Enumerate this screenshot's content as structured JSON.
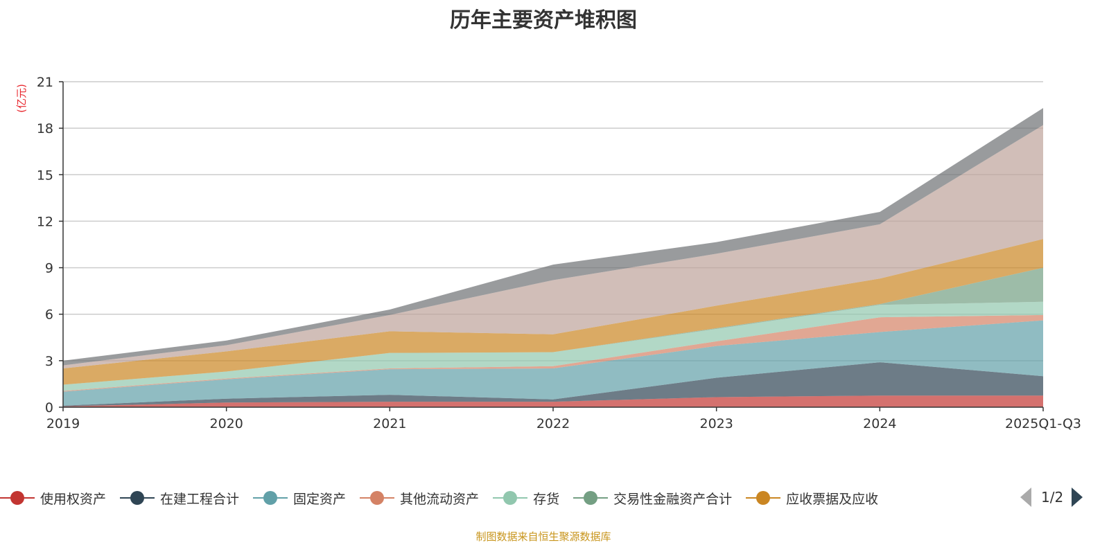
{
  "chart_data": {
    "type": "area",
    "stacked": true,
    "title": "历年主要资产堆积图",
    "ylabel": "(亿元)",
    "xlabel": "",
    "ylim": [
      0,
      21
    ],
    "yticks": [
      0,
      3,
      6,
      9,
      12,
      15,
      18,
      21
    ],
    "categories": [
      "2019",
      "2020",
      "2021",
      "2022",
      "2023",
      "2024",
      "2025Q1-Q3"
    ],
    "grid": true,
    "legend_position": "bottom",
    "legend_page": "1/2",
    "series": [
      {
        "name": "使用权资产",
        "color": "#c23531",
        "values": [
          0.05,
          0.3,
          0.35,
          0.35,
          0.65,
          0.75,
          0.75
        ]
      },
      {
        "name": "在建工程合计",
        "color": "#2f4554",
        "values": [
          0.05,
          0.25,
          0.45,
          0.15,
          1.25,
          2.15,
          1.25
        ]
      },
      {
        "name": "固定资产",
        "color": "#61a0a8",
        "values": [
          0.9,
          1.25,
          1.65,
          2.0,
          2.05,
          1.95,
          3.6
        ]
      },
      {
        "name": "其他流动资产",
        "color": "#d48265",
        "values": [
          0.05,
          0.05,
          0.05,
          0.15,
          0.3,
          0.95,
          0.35
        ]
      },
      {
        "name": "存货",
        "color": "#91c7ae",
        "values": [
          0.4,
          0.45,
          1.0,
          0.9,
          0.8,
          0.8,
          0.85
        ]
      },
      {
        "name": "交易性金融资产合计",
        "color": "#749f83",
        "values": [
          0,
          0,
          0,
          0,
          0.05,
          0.05,
          2.2
        ]
      },
      {
        "name": "应收票据及应收",
        "color": "#ca8622",
        "values": [
          1.05,
          1.3,
          1.4,
          1.15,
          1.45,
          1.65,
          1.85
        ]
      },
      {
        "name": "",
        "color": "#bda29a",
        "values": [
          0.2,
          0.4,
          1.05,
          3.5,
          3.35,
          3.5,
          7.35
        ]
      },
      {
        "name": "",
        "color": "#6e7074",
        "values": [
          0.3,
          0.3,
          0.35,
          1.0,
          0.75,
          0.8,
          1.1
        ]
      }
    ]
  },
  "source": "制图数据来自恒生聚源数据库"
}
